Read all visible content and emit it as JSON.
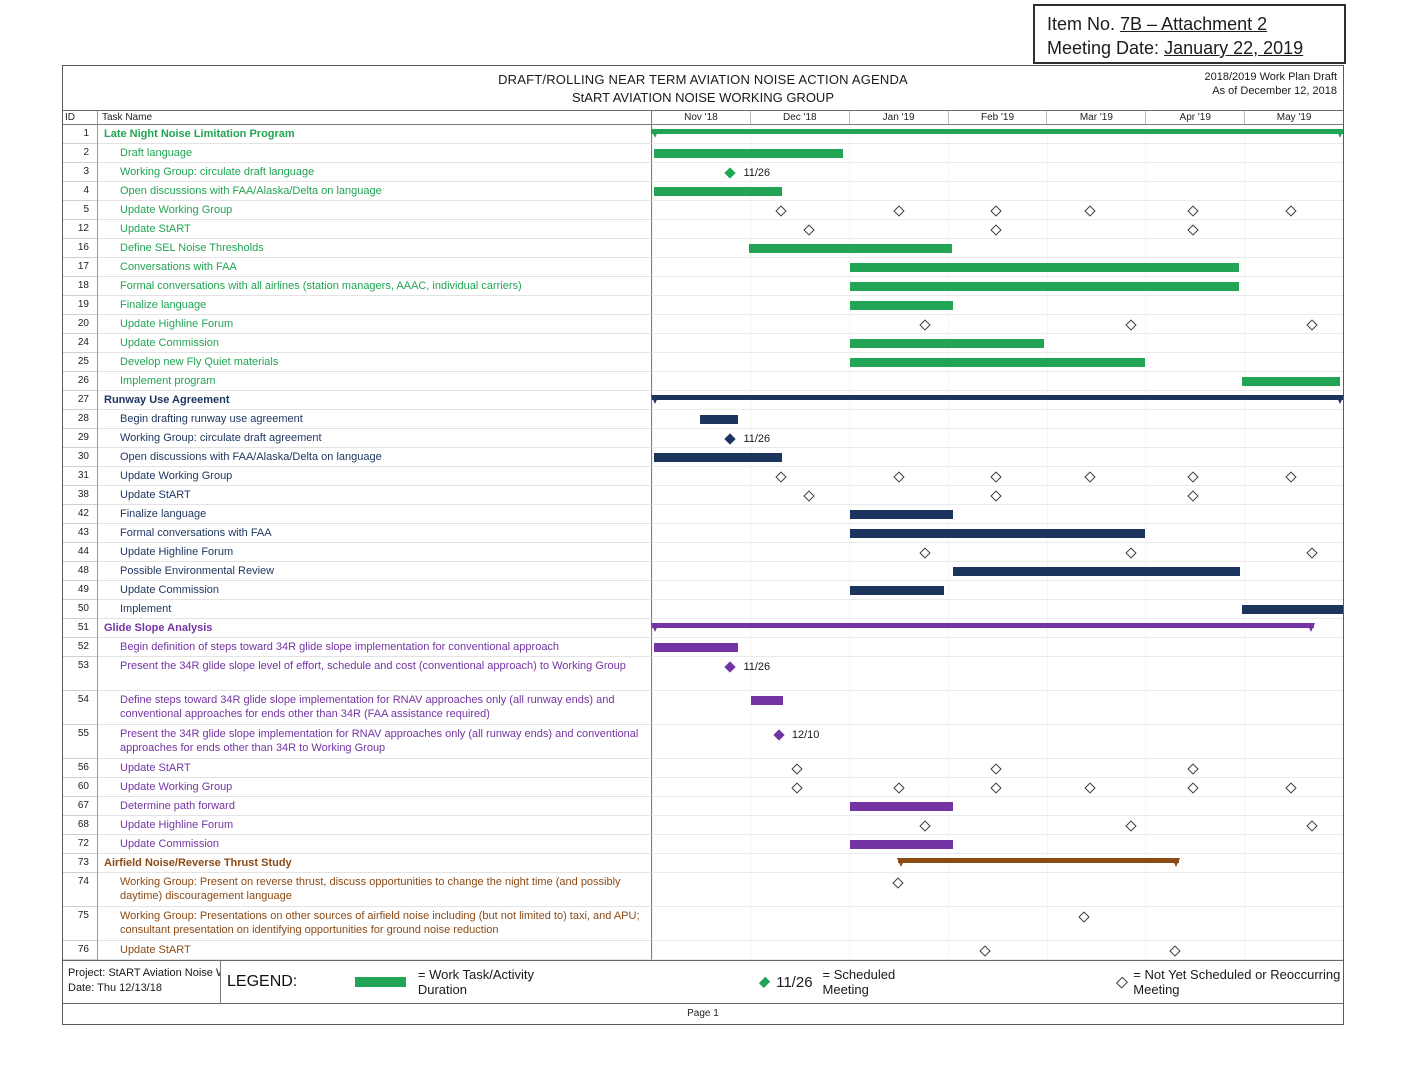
{
  "stamp": {
    "item_prefix": "Item No. ",
    "item_value": "7B – Attachment 2",
    "meeting_prefix": "Meeting Date: ",
    "meeting_value": "January 22, 2019"
  },
  "header": {
    "title_line1": "DRAFT/ROLLING NEAR TERM AVIATION NOISE ACTION AGENDA",
    "title_line2": "StART AVIATION NOISE WORKING GROUP",
    "right_line1": "2018/2019 Work Plan Draft",
    "right_line2": "As of December 12, 2018"
  },
  "table": {
    "id_header": "ID",
    "task_header": "Task Name"
  },
  "timeline": {
    "months": [
      "Nov '18",
      "Dec '18",
      "Jan '19",
      "Feb '19",
      "Mar '19",
      "Apr '19",
      "May '19"
    ]
  },
  "colors": {
    "green": "#21A453",
    "navy": "#1C355E",
    "purple": "#7434A4",
    "brown": "#8C4A15"
  },
  "gantt": {
    "rows": [
      {
        "id": "1",
        "task": "Late Night Noise Limitation Program",
        "section": "green",
        "bold": true,
        "bars": [
          {
            "s": 0,
            "e": 100,
            "summary": true
          }
        ],
        "ms": []
      },
      {
        "id": "2",
        "task": "Draft language",
        "section": "green",
        "bars": [
          {
            "s": 0.3,
            "e": 27.6
          }
        ],
        "ms": []
      },
      {
        "id": "3",
        "task": "Working Group: circulate draft language",
        "section": "green",
        "bars": [],
        "ms": [
          {
            "p": 11.5,
            "f": true,
            "label": "11/26"
          }
        ]
      },
      {
        "id": "4",
        "task": "Open discussions with FAA/Alaska/Delta on language",
        "section": "green",
        "bars": [
          {
            "s": 0.3,
            "e": 18.8
          }
        ],
        "ms": []
      },
      {
        "id": "5",
        "task": "Update Working Group",
        "section": "green",
        "bars": [],
        "ms": [
          {
            "p": 18.8,
            "f": false
          },
          {
            "p": 35.9,
            "f": false
          },
          {
            "p": 49.9,
            "f": false
          },
          {
            "p": 63.6,
            "f": false
          },
          {
            "p": 78.4,
            "f": false
          },
          {
            "p": 92.6,
            "f": false
          }
        ]
      },
      {
        "id": "12",
        "task": "Update StART",
        "section": "green",
        "bars": [],
        "ms": [
          {
            "p": 22.9,
            "f": false
          },
          {
            "p": 49.9,
            "f": false
          },
          {
            "p": 78.4,
            "f": false
          }
        ]
      },
      {
        "id": "16",
        "task": "Define SEL Noise Thresholds",
        "section": "green",
        "bars": [
          {
            "s": 14.0,
            "e": 43.4
          }
        ],
        "ms": []
      },
      {
        "id": "17",
        "task": "Conversations with FAA",
        "section": "green",
        "bars": [
          {
            "s": 28.7,
            "e": 85.0
          }
        ],
        "ms": []
      },
      {
        "id": "18",
        "task": "Formal conversations with all airlines (station managers, AAAC, individual carriers)",
        "section": "green",
        "bars": [
          {
            "s": 28.7,
            "e": 85.0
          }
        ],
        "ms": []
      },
      {
        "id": "19",
        "task": "Finalize language",
        "section": "green",
        "bars": [
          {
            "s": 28.7,
            "e": 43.6
          }
        ],
        "ms": []
      },
      {
        "id": "20",
        "task": "Update Highline Forum",
        "section": "green",
        "bars": [],
        "ms": [
          {
            "p": 39.7,
            "f": false
          },
          {
            "p": 69.4,
            "f": false
          },
          {
            "p": 95.7,
            "f": false
          }
        ]
      },
      {
        "id": "24",
        "task": "Update Commission",
        "section": "green",
        "bars": [
          {
            "s": 28.7,
            "e": 56.7
          }
        ],
        "ms": []
      },
      {
        "id": "25",
        "task": "Develop new Fly Quiet materials",
        "section": "green",
        "bars": [
          {
            "s": 28.7,
            "e": 71.4
          }
        ],
        "ms": []
      },
      {
        "id": "26",
        "task": "Implement program",
        "section": "green",
        "bars": [
          {
            "s": 85.4,
            "e": 99.6
          }
        ],
        "ms": []
      },
      {
        "id": "27",
        "task": "Runway Use Agreement",
        "section": "navy",
        "bold": true,
        "bars": [
          {
            "s": 0,
            "e": 100,
            "summary": true
          }
        ],
        "ms": []
      },
      {
        "id": "28",
        "task": "Begin drafting runway use agreement",
        "section": "navy",
        "bars": [
          {
            "s": 6.9,
            "e": 12.4
          }
        ],
        "ms": []
      },
      {
        "id": "29",
        "task": "Working Group: circulate draft agreement",
        "section": "navy",
        "bars": [],
        "ms": [
          {
            "p": 11.5,
            "f": true,
            "label": "11/26"
          }
        ]
      },
      {
        "id": "30",
        "task": "Open discussions with FAA/Alaska/Delta on language",
        "section": "navy",
        "bars": [
          {
            "s": 0.3,
            "e": 18.8
          }
        ],
        "ms": []
      },
      {
        "id": "31",
        "task": "Update Working Group",
        "section": "navy",
        "bars": [],
        "ms": [
          {
            "p": 18.8,
            "f": false
          },
          {
            "p": 35.9,
            "f": false
          },
          {
            "p": 49.9,
            "f": false
          },
          {
            "p": 63.6,
            "f": false
          },
          {
            "p": 78.4,
            "f": false
          },
          {
            "p": 92.6,
            "f": false
          }
        ]
      },
      {
        "id": "38",
        "task": "Update StART",
        "section": "navy",
        "bars": [],
        "ms": [
          {
            "p": 22.9,
            "f": false
          },
          {
            "p": 49.9,
            "f": false
          },
          {
            "p": 78.4,
            "f": false
          }
        ]
      },
      {
        "id": "42",
        "task": "Finalize language",
        "section": "navy",
        "bars": [
          {
            "s": 28.7,
            "e": 43.6
          }
        ],
        "ms": []
      },
      {
        "id": "43",
        "task": "Formal conversations with FAA",
        "section": "navy",
        "bars": [
          {
            "s": 28.7,
            "e": 71.4
          }
        ],
        "ms": []
      },
      {
        "id": "44",
        "task": "Update Highline Forum",
        "section": "navy",
        "bars": [],
        "ms": [
          {
            "p": 39.7,
            "f": false
          },
          {
            "p": 69.4,
            "f": false
          },
          {
            "p": 95.7,
            "f": false
          }
        ]
      },
      {
        "id": "48",
        "task": "Possible Environmental Review",
        "section": "navy",
        "bars": [
          {
            "s": 43.6,
            "e": 85.1
          }
        ],
        "ms": []
      },
      {
        "id": "49",
        "task": "Update Commission",
        "section": "navy",
        "bars": [
          {
            "s": 28.7,
            "e": 42.3
          }
        ],
        "ms": []
      },
      {
        "id": "50",
        "task": "Implement",
        "section": "navy",
        "bars": [
          {
            "s": 85.4,
            "e": 100
          }
        ],
        "ms": []
      },
      {
        "id": "51",
        "task": "Glide Slope Analysis",
        "section": "purple",
        "bold": true,
        "bars": [
          {
            "s": 0,
            "e": 95.8,
            "summary": true
          }
        ],
        "ms": []
      },
      {
        "id": "52",
        "task": "Begin definition of steps toward 34R glide slope implementation for conventional approach",
        "section": "purple",
        "bars": [
          {
            "s": 0.3,
            "e": 12.4
          }
        ],
        "ms": []
      },
      {
        "id": "53",
        "task": "Present the 34R glide slope level of effort, schedule and cost (conventional approach) to Working Group",
        "section": "purple",
        "tall": true,
        "bars": [],
        "ms": [
          {
            "p": 11.5,
            "f": true,
            "label": "11/26"
          }
        ]
      },
      {
        "id": "54",
        "task": "Define steps toward 34R glide slope implementation for RNAV approaches only (all runway ends) and conventional approaches for ends other than 34R (FAA assistance required)",
        "section": "purple",
        "tall": true,
        "bars": [
          {
            "s": 14.3,
            "e": 19.0
          }
        ],
        "ms": []
      },
      {
        "id": "55",
        "task": "Present the 34R glide slope implementation for RNAV approaches only (all runway ends) and conventional approaches for ends other than 34R to Working Group",
        "section": "purple",
        "tall": true,
        "bars": [],
        "ms": [
          {
            "p": 18.5,
            "f": true,
            "label": "12/10"
          }
        ]
      },
      {
        "id": "56",
        "task": "Update StART",
        "section": "purple",
        "bars": [],
        "ms": [
          {
            "p": 21.1,
            "f": false
          },
          {
            "p": 49.9,
            "f": false
          },
          {
            "p": 78.4,
            "f": false
          }
        ]
      },
      {
        "id": "60",
        "task": "Update Working Group",
        "section": "purple",
        "bars": [],
        "ms": [
          {
            "p": 21.1,
            "f": false
          },
          {
            "p": 35.9,
            "f": false
          },
          {
            "p": 49.9,
            "f": false
          },
          {
            "p": 63.6,
            "f": false
          },
          {
            "p": 78.4,
            "f": false
          },
          {
            "p": 92.6,
            "f": false
          }
        ]
      },
      {
        "id": "67",
        "task": "Determine path forward",
        "section": "purple",
        "bars": [
          {
            "s": 28.7,
            "e": 43.6
          }
        ],
        "ms": []
      },
      {
        "id": "68",
        "task": "Update Highline Forum",
        "section": "purple",
        "bars": [],
        "ms": [
          {
            "p": 39.7,
            "f": false
          },
          {
            "p": 69.4,
            "f": false
          },
          {
            "p": 95.7,
            "f": false
          }
        ]
      },
      {
        "id": "72",
        "task": "Update Commission",
        "section": "purple",
        "bars": [
          {
            "s": 28.7,
            "e": 43.6
          }
        ],
        "ms": []
      },
      {
        "id": "73",
        "task": "Airfield Noise/Reverse Thrust Study",
        "section": "brown",
        "bold": true,
        "bars": [
          {
            "s": 35.6,
            "e": 76.3,
            "summary": true
          }
        ],
        "ms": []
      },
      {
        "id": "74",
        "task": "Working Group: Present on reverse thrust, discuss opportunities to change the night time (and possibly daytime) discouragement language",
        "section": "brown",
        "tall": true,
        "bars": [],
        "ms": [
          {
            "p": 35.8,
            "f": false
          }
        ]
      },
      {
        "id": "75",
        "task": "Working Group: Presentations on other sources of airfield noise including (but not limited to) taxi, and APU; consultant presentation on identifying opportunities for ground noise reduction",
        "section": "brown",
        "tall": true,
        "bars": [],
        "ms": [
          {
            "p": 62.6,
            "f": false
          }
        ]
      },
      {
        "id": "76",
        "task": "Update StART",
        "section": "brown",
        "bars": [],
        "ms": [
          {
            "p": 48.3,
            "f": false
          },
          {
            "p": 75.9,
            "f": false
          }
        ]
      }
    ]
  },
  "legend": {
    "title": "LEGEND:",
    "bar_label": "= Work Task/Activity Duration",
    "milestone_date": "11/26",
    "scheduled_label": "= Scheduled Meeting",
    "unscheduled_label": "= Not Yet Scheduled or Reoccurring Meeting"
  },
  "footer": {
    "project": "Project: StART Aviation Noise W",
    "date": "Date: Thu 12/13/18",
    "page": "Page 1"
  }
}
